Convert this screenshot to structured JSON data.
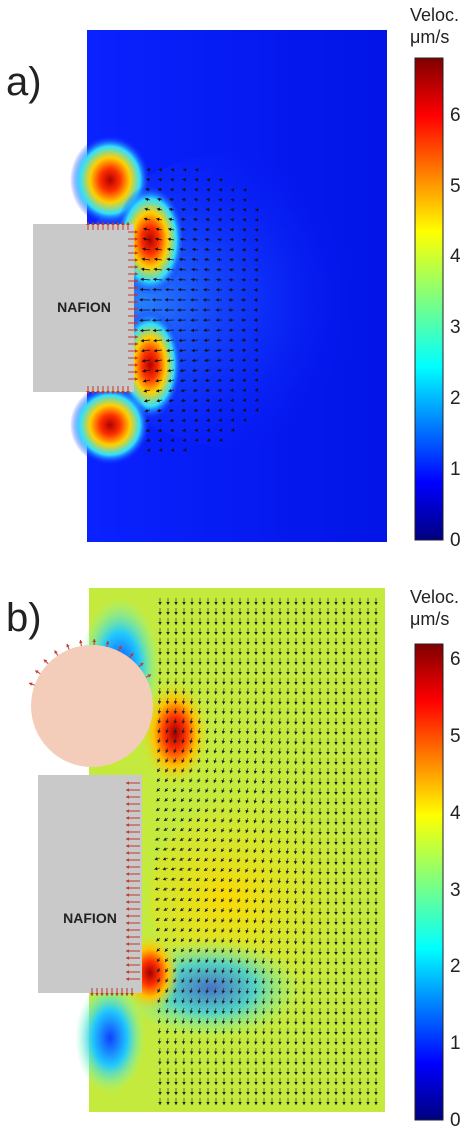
{
  "panels": [
    {
      "label": "a)",
      "membrane_label": "NAFION",
      "colorbar": {
        "title_line1": "Veloc.",
        "title_line2": "μm/s",
        "min": 0,
        "max": 6.8,
        "ticks": [
          "6",
          "5",
          "4",
          "3",
          "2",
          "1",
          "0"
        ]
      },
      "field_background_value": 0.3,
      "has_bubble": false
    },
    {
      "label": "b)",
      "membrane_label": "NAFION",
      "colorbar": {
        "title_line1": "Veloc.",
        "title_line2": "μm/s",
        "min": 0,
        "max": 6.2,
        "ticks": [
          "6",
          "5",
          "4",
          "3",
          "2",
          "1",
          "0"
        ]
      },
      "field_background_value": 3.4,
      "has_bubble": true
    }
  ],
  "colors": {
    "membrane": "#c9c9c9",
    "bubble": "#f3cdb9",
    "arrows_membrane": "#c0392b",
    "arrows_field": "#1a1a1a"
  }
}
